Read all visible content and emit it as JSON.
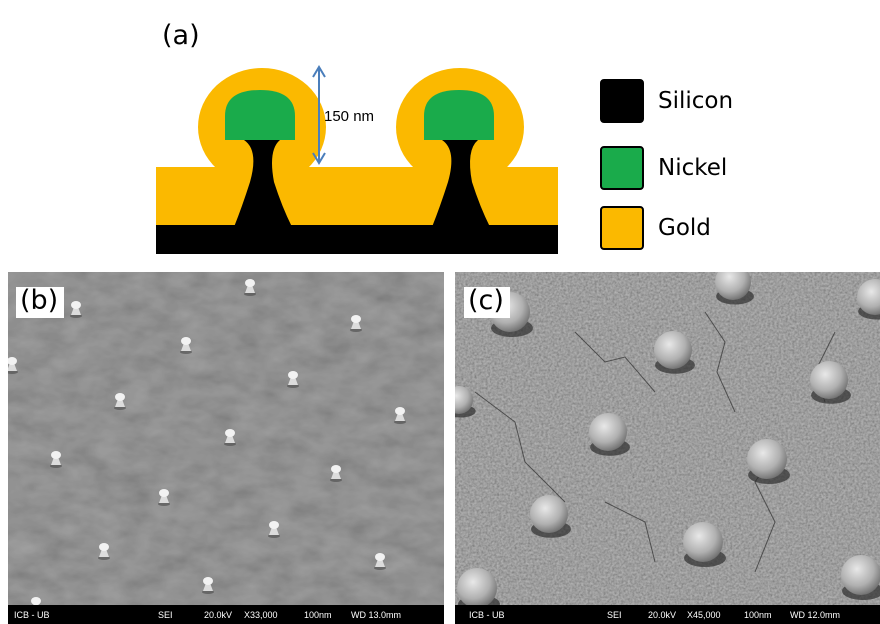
{
  "panel_a": {
    "label": "(a)",
    "dimension_label": "150 nm",
    "legend": [
      {
        "name": "Silicon",
        "color": "#000000"
      },
      {
        "name": "Nickel",
        "color": "#1aab4b"
      },
      {
        "name": "Gold",
        "color": "#fbb900"
      }
    ]
  },
  "panel_b": {
    "label": "(b)",
    "databar": {
      "source": "ICB - UB",
      "mode": "SEI",
      "voltage": "20.0kV",
      "magnification": "X33,000",
      "scale": "100nm",
      "wd": "WD 13.0mm"
    }
  },
  "panel_c": {
    "label": "(c)",
    "databar": {
      "source": "ICB - UB",
      "mode": "SEI",
      "voltage": "20.0kV",
      "magnification": "X45,000",
      "scale": "100nm",
      "wd": "WD 12.0mm"
    }
  },
  "colors": {
    "background": "#ffffff",
    "sem_b_bg": "#808080",
    "sem_c_bg": "#7a7a7a",
    "arrow": "#4a7ebb"
  }
}
